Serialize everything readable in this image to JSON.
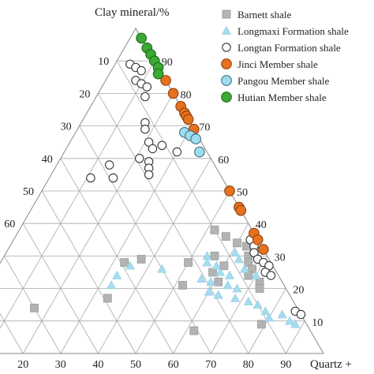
{
  "chart_data": {
    "type": "ternary",
    "axes": {
      "top": "Clay mineral/%",
      "right": "Quartz + ",
      "left_ticks": [
        "10",
        "20",
        "30",
        "40",
        "50",
        "60"
      ],
      "right_ticks": [
        "90",
        "80",
        "70",
        "60",
        "50",
        "40",
        "30",
        "20",
        "10"
      ],
      "bottom_ticks": [
        "20",
        "30",
        "40",
        "50",
        "60",
        "70",
        "80",
        "90"
      ]
    },
    "grid": true,
    "legend_position": "top-right",
    "series": [
      {
        "name": "Barnett shale",
        "marker": "square",
        "color": "#b3b3b3",
        "stroke": "#9a9a9a",
        "points": [
          {
            "clay": 38,
            "quartz": 52
          },
          {
            "clay": 36,
            "quartz": 56
          },
          {
            "clay": 34,
            "quartz": 60
          },
          {
            "clay": 33,
            "quartz": 63
          },
          {
            "clay": 30,
            "quartz": 65
          },
          {
            "clay": 28,
            "quartz": 66
          },
          {
            "clay": 26,
            "quartz": 68
          },
          {
            "clay": 24,
            "quartz": 68
          },
          {
            "clay": 22,
            "quartz": 72
          },
          {
            "clay": 20,
            "quartz": 73
          },
          {
            "clay": 27,
            "quartz": 60
          },
          {
            "clay": 22,
            "quartz": 61
          },
          {
            "clay": 30,
            "quartz": 56
          },
          {
            "clay": 21,
            "quartz": 52
          },
          {
            "clay": 28,
            "quartz": 33
          },
          {
            "clay": 29,
            "quartz": 37
          },
          {
            "clay": 17,
            "quartz": 34
          },
          {
            "clay": 14,
            "quartz": 16
          },
          {
            "clay": 7,
            "quartz": 62
          },
          {
            "clay": 9,
            "quartz": 79
          },
          {
            "clay": 28,
            "quartz": 50
          },
          {
            "clay": 25,
            "quartz": 58
          }
        ]
      },
      {
        "name": "Longmaxi Formation shale",
        "marker": "triangle",
        "color": "#a6dcef",
        "stroke": "#8ccbe0",
        "points": [
          {
            "clay": 30,
            "quartz": 54
          },
          {
            "clay": 28,
            "quartz": 55
          },
          {
            "clay": 27,
            "quartz": 58
          },
          {
            "clay": 25,
            "quartz": 60
          },
          {
            "clay": 24,
            "quartz": 63
          },
          {
            "clay": 23,
            "quartz": 56
          },
          {
            "clay": 22,
            "quartz": 59
          },
          {
            "clay": 21,
            "quartz": 64
          },
          {
            "clay": 20,
            "quartz": 67
          },
          {
            "clay": 19,
            "quartz": 60
          },
          {
            "clay": 18,
            "quartz": 63
          },
          {
            "clay": 17,
            "quartz": 68
          },
          {
            "clay": 16,
            "quartz": 72
          },
          {
            "clay": 15,
            "quartz": 75
          },
          {
            "clay": 13,
            "quartz": 78
          },
          {
            "clay": 12,
            "quartz": 83
          },
          {
            "clay": 11,
            "quartz": 80
          },
          {
            "clay": 10,
            "quartz": 86
          },
          {
            "clay": 9,
            "quartz": 88
          },
          {
            "clay": 26,
            "quartz": 66
          },
          {
            "clay": 24,
            "quartz": 70
          },
          {
            "clay": 31,
            "quartz": 61
          },
          {
            "clay": 29,
            "quartz": 63
          },
          {
            "clay": 27,
            "quartz": 35
          },
          {
            "clay": 24,
            "quartz": 33
          },
          {
            "clay": 21,
            "quartz": 33
          },
          {
            "clay": 26,
            "quartz": 44
          }
        ]
      },
      {
        "name": "Longtan Formation shale",
        "marker": "circle",
        "color": "#ffffff",
        "stroke": "#333333",
        "points": [
          {
            "clay": 89,
            "quartz": 4
          },
          {
            "clay": 88,
            "quartz": 6
          },
          {
            "clay": 87,
            "quartz": 8
          },
          {
            "clay": 84,
            "quartz": 8
          },
          {
            "clay": 83,
            "quartz": 10
          },
          {
            "clay": 82,
            "quartz": 12
          },
          {
            "clay": 79,
            "quartz": 13
          },
          {
            "clay": 71,
            "quartz": 17
          },
          {
            "clay": 69,
            "quartz": 18
          },
          {
            "clay": 65,
            "quartz": 21
          },
          {
            "clay": 64,
            "quartz": 25
          },
          {
            "clay": 63,
            "quartz": 23
          },
          {
            "clay": 62,
            "quartz": 30
          },
          {
            "clay": 60,
            "quartz": 21
          },
          {
            "clay": 59,
            "quartz": 24
          },
          {
            "clay": 58,
            "quartz": 14
          },
          {
            "clay": 57,
            "quartz": 25
          },
          {
            "clay": 55,
            "quartz": 26
          },
          {
            "clay": 54,
            "quartz": 11
          },
          {
            "clay": 54,
            "quartz": 17
          },
          {
            "clay": 35,
            "quartz": 63
          },
          {
            "clay": 33,
            "quartz": 65
          },
          {
            "clay": 31,
            "quartz": 66
          },
          {
            "clay": 29,
            "quartz": 68
          },
          {
            "clay": 28,
            "quartz": 70
          },
          {
            "clay": 27,
            "quartz": 72
          },
          {
            "clay": 25,
            "quartz": 72
          },
          {
            "clay": 24,
            "quartz": 74
          },
          {
            "clay": 13,
            "quartz": 86
          },
          {
            "clay": 12,
            "quartz": 88
          }
        ]
      },
      {
        "name": "Jinci Member shale",
        "marker": "circle",
        "color": "#e8711e",
        "stroke": "#8a4415",
        "points": [
          {
            "clay": 84,
            "quartz": 16
          },
          {
            "clay": 80,
            "quartz": 20
          },
          {
            "clay": 76,
            "quartz": 24
          },
          {
            "clay": 74,
            "quartz": 26
          },
          {
            "clay": 73,
            "quartz": 27
          },
          {
            "clay": 72,
            "quartz": 28
          },
          {
            "clay": 69,
            "quartz": 31
          },
          {
            "clay": 50,
            "quartz": 50
          },
          {
            "clay": 45,
            "quartz": 55
          },
          {
            "clay": 44,
            "quartz": 56
          },
          {
            "clay": 37,
            "quartz": 63
          },
          {
            "clay": 35,
            "quartz": 65
          },
          {
            "clay": 32,
            "quartz": 68
          }
        ]
      },
      {
        "name": "Pangou Member shale",
        "marker": "circle",
        "color": "#9fdcf0",
        "stroke": "#3d6f80",
        "points": [
          {
            "clay": 68,
            "quartz": 29
          },
          {
            "clay": 67,
            "quartz": 31
          },
          {
            "clay": 66,
            "quartz": 33
          },
          {
            "clay": 62,
            "quartz": 36
          }
        ]
      },
      {
        "name": "Hutian Member shale",
        "marker": "circle",
        "color": "#3aa935",
        "stroke": "#1e6b1c",
        "points": [
          {
            "clay": 97,
            "quartz": 3
          },
          {
            "clay": 94,
            "quartz": 6
          },
          {
            "clay": 92,
            "quartz": 8
          },
          {
            "clay": 90,
            "quartz": 10
          },
          {
            "clay": 88,
            "quartz": 12
          },
          {
            "clay": 86,
            "quartz": 13
          }
        ]
      }
    ]
  }
}
